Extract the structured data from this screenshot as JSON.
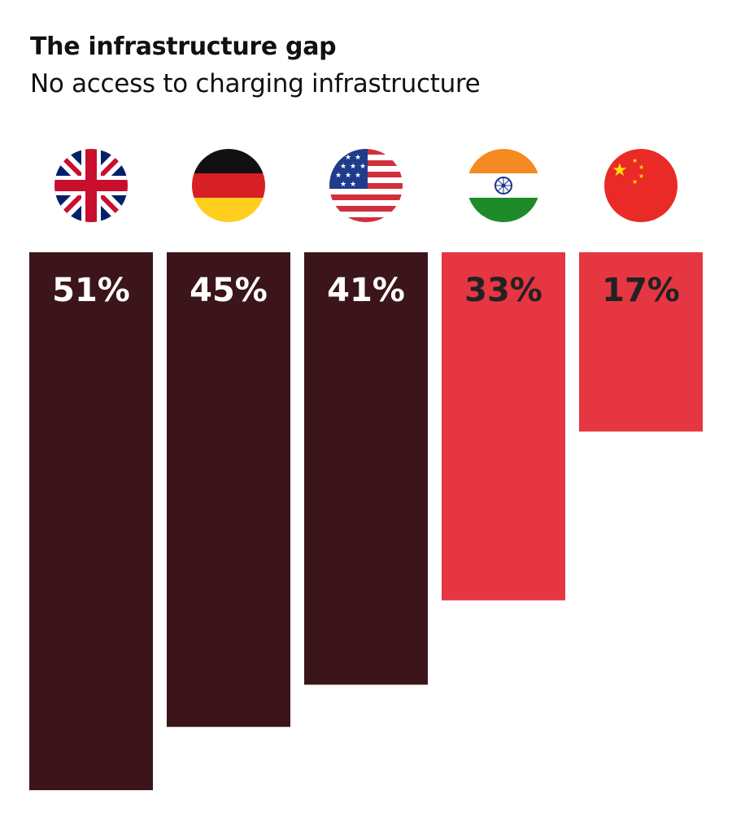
{
  "header": {
    "title": "The infrastructure gap",
    "subtitle": "No access to charging infrastructure"
  },
  "colors": {
    "dark_bar": "#3b1519",
    "red_bar": "#e63642",
    "label_on_dark": "#ffffff",
    "label_on_red": "#222222"
  },
  "chart_data": {
    "type": "bar",
    "categories": [
      "UK",
      "Germany",
      "USA",
      "India",
      "China"
    ],
    "flag_icons": [
      "uk-flag-icon",
      "germany-flag-icon",
      "usa-flag-icon",
      "india-flag-icon",
      "china-flag-icon"
    ],
    "values": [
      51,
      45,
      41,
      33,
      17
    ],
    "labels": [
      "51%",
      "45%",
      "41%",
      "33%",
      "17%"
    ],
    "bar_colors": [
      "#3b1519",
      "#3b1519",
      "#3b1519",
      "#e63642",
      "#e63642"
    ],
    "label_colors": [
      "#ffffff",
      "#ffffff",
      "#ffffff",
      "#222222",
      "#222222"
    ],
    "title": "The infrastructure gap",
    "subtitle": "No access to charging infrastructure",
    "ylim": [
      0,
      51
    ],
    "grid": false
  }
}
